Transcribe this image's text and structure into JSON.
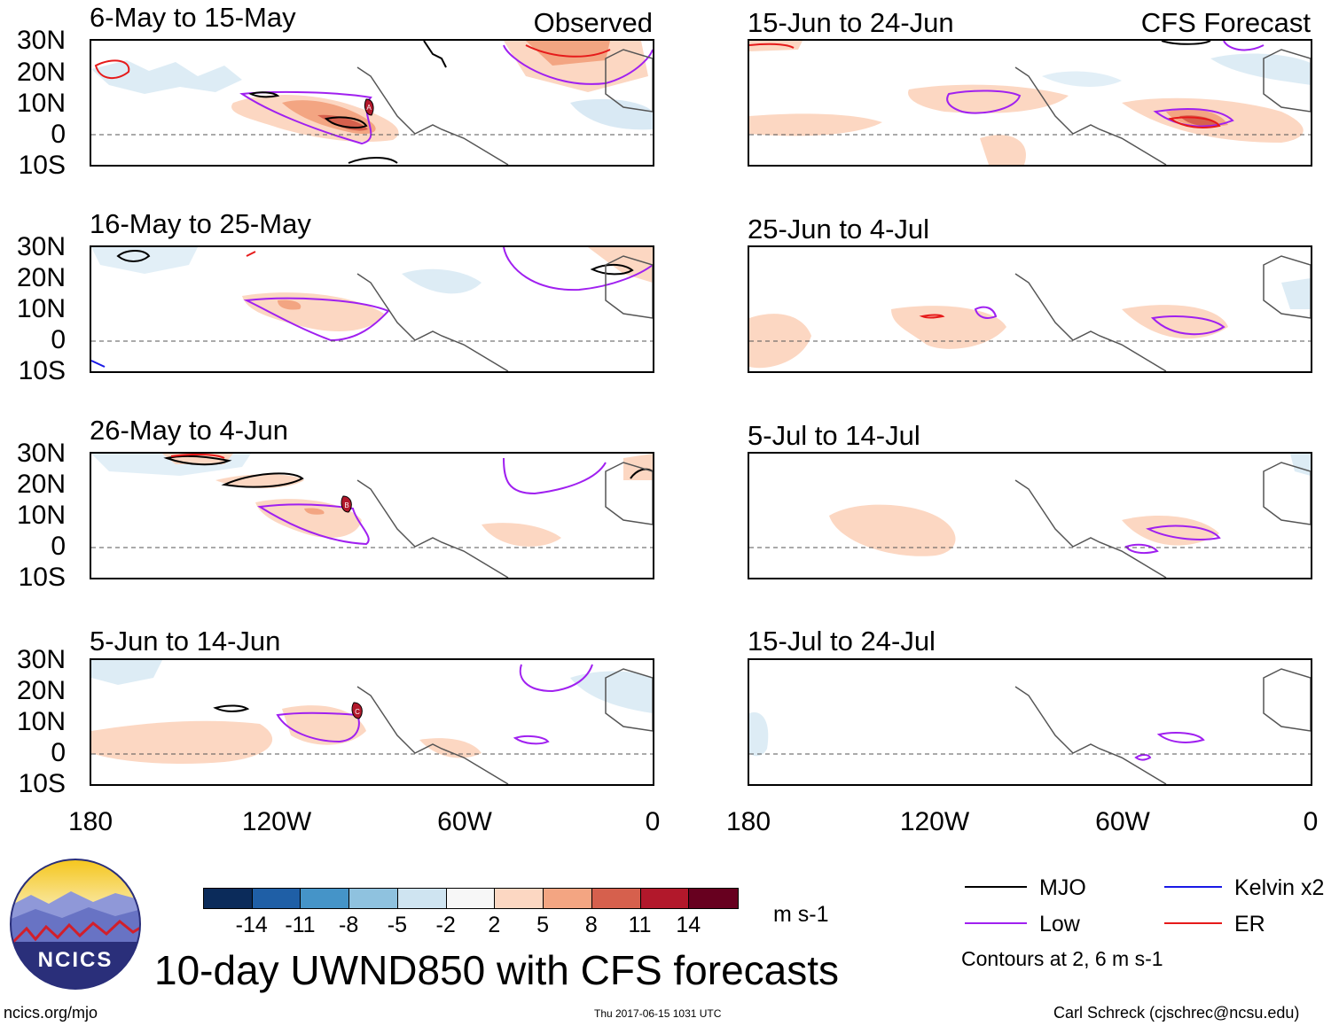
{
  "header": {
    "observed_label": "Observed",
    "forecast_label": "CFS Forecast"
  },
  "axes": {
    "lat_labels": [
      "30N",
      "20N",
      "10N",
      "0",
      "10S"
    ],
    "lon_labels": [
      "180",
      "120W",
      "60W",
      "0"
    ]
  },
  "panels": {
    "observed": [
      {
        "title": "6-May to 15-May",
        "storm_markers": [
          "A"
        ]
      },
      {
        "title": "16-May to 25-May",
        "storm_markers": []
      },
      {
        "title": "26-May to 4-Jun",
        "storm_markers": [
          "B"
        ]
      },
      {
        "title": "5-Jun to 14-Jun",
        "storm_markers": [
          "C"
        ]
      }
    ],
    "forecast": [
      {
        "title": "15-Jun to 24-Jun"
      },
      {
        "title": "25-Jun to 4-Jul"
      },
      {
        "title": "5-Jul to 14-Jul"
      },
      {
        "title": "15-Jul to 24-Jul"
      }
    ]
  },
  "colorbar": {
    "unit": "m s-1",
    "ticks": [
      "-14",
      "-11",
      "-8",
      "-5",
      "-2",
      "2",
      "5",
      "8",
      "11",
      "14"
    ],
    "colors": [
      "#0b2b5a",
      "#1f5fa6",
      "#4594c8",
      "#8fc2df",
      "#cfe4f1",
      "#f7f7f7",
      "#fcd7c2",
      "#f3a582",
      "#d6604d",
      "#b2182b",
      "#67001f"
    ]
  },
  "legend": {
    "items": [
      {
        "label": "MJO",
        "color": "#000000"
      },
      {
        "label": "Kelvin x2",
        "color": "#1a1ae6"
      },
      {
        "label": "Low",
        "color": "#a020f0"
      },
      {
        "label": "ER",
        "color": "#e61a1a"
      }
    ],
    "contours_note": "Contours at 2, 6 m s-1"
  },
  "logo": {
    "text": "NCICS"
  },
  "title": "10-day UWND850 with CFS forecasts",
  "footer": {
    "url": "ncics.org/mjo",
    "timestamp": "Thu 2017-06-15 1031 UTC",
    "credit": "Carl Schreck (cjschrec@ncsu.edu)"
  }
}
